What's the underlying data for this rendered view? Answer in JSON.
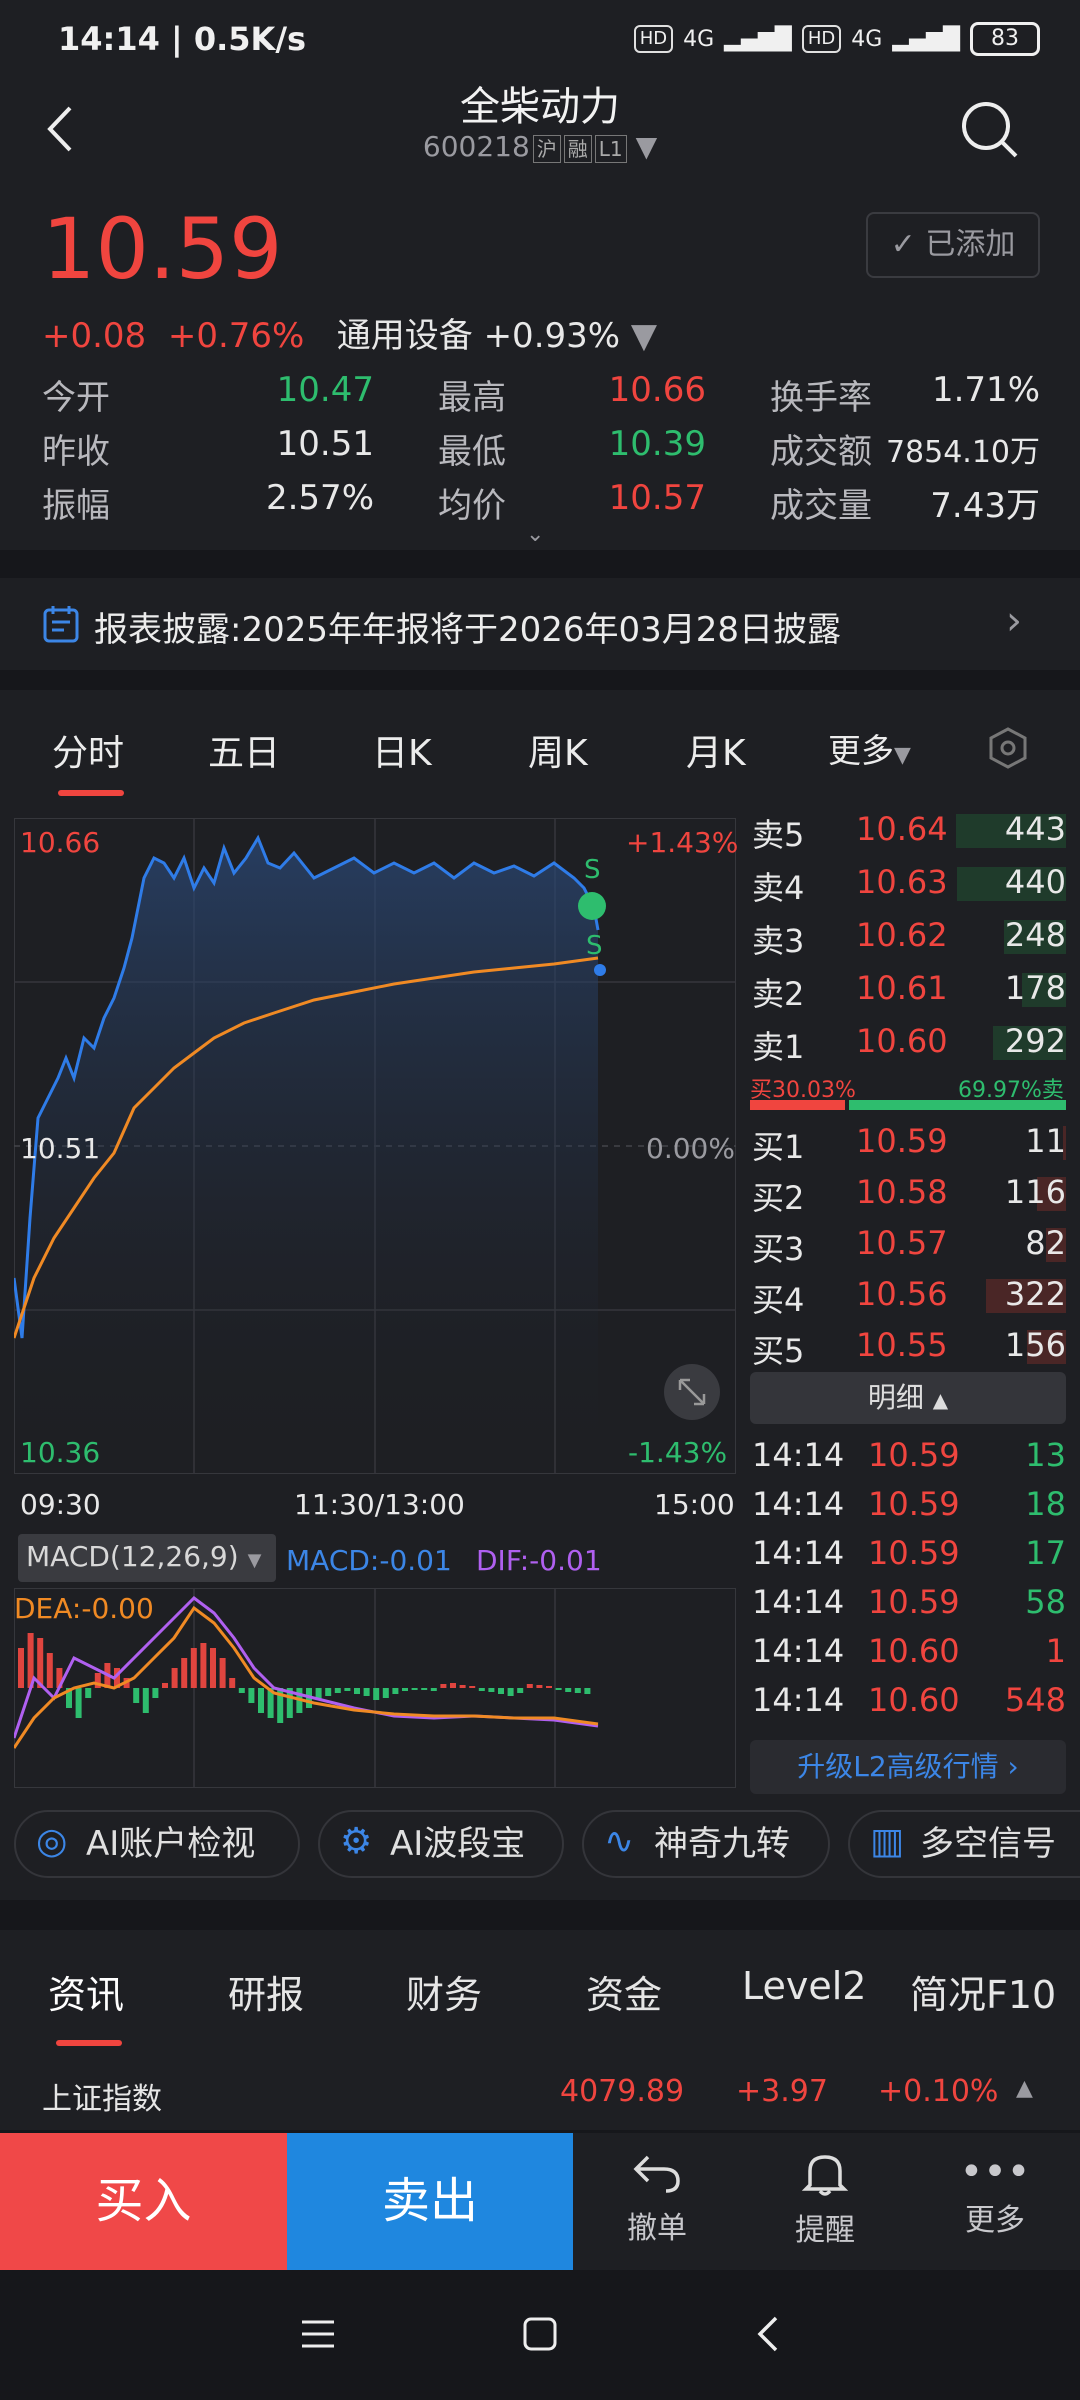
{
  "status": {
    "time": "14:14 | 0.5K/s",
    "battery": "83",
    "net1": "4G",
    "net2": "4G",
    "hd": "HD"
  },
  "header": {
    "name": "全柴动力",
    "code": "600218",
    "tags": [
      "沪",
      "融",
      "L1"
    ]
  },
  "quote": {
    "price": "10.59",
    "change": "+0.08",
    "pct": "+0.76%",
    "sector": "通用设备 +0.93%",
    "added": "已添加"
  },
  "stats": [
    {
      "k": "今开",
      "v": "10.47",
      "c": "green"
    },
    {
      "k": "最高",
      "v": "10.66",
      "c": "red"
    },
    {
      "k": "换手率",
      "v": "1.71%",
      "c": "white"
    },
    {
      "k": "昨收",
      "v": "10.51",
      "c": "white"
    },
    {
      "k": "最低",
      "v": "10.39",
      "c": "green"
    },
    {
      "k": "成交额",
      "v": "7854.10万",
      "c": "white"
    },
    {
      "k": "振幅",
      "v": "2.57%",
      "c": "white"
    },
    {
      "k": "均价",
      "v": "10.57",
      "c": "red"
    },
    {
      "k": "成交量",
      "v": "7.43万",
      "c": "white"
    }
  ],
  "notice": "报表披露:2025年年报将于2026年03月28日披露",
  "tabs": [
    "分时",
    "五日",
    "日K",
    "周K",
    "月K",
    "更多"
  ],
  "chart": {
    "top_price": "10.66",
    "mid_price": "10.51",
    "low_price": "10.36",
    "top_pct": "+1.43%",
    "mid_pct": "0.00%",
    "low_pct": "-1.43%",
    "t_start": "09:30",
    "t_mid": "11:30/13:00",
    "t_end": "15:00"
  },
  "macd": {
    "label": "MACD(12,26,9)",
    "macd": "MACD:-0.01",
    "dif": "DIF:-0.01",
    "dea": "DEA:-0.00"
  },
  "book": {
    "asks": [
      {
        "l": "卖5",
        "p": "10.64",
        "v": "443"
      },
      {
        "l": "卖4",
        "p": "10.63",
        "v": "440"
      },
      {
        "l": "卖3",
        "p": "10.62",
        "v": "248"
      },
      {
        "l": "卖2",
        "p": "10.61",
        "v": "178"
      },
      {
        "l": "卖1",
        "p": "10.60",
        "v": "292"
      }
    ],
    "ratio_buy": "买30.03%",
    "ratio_sell": "69.97%卖",
    "buy_fraction": 0.3003,
    "bids": [
      {
        "l": "买1",
        "p": "10.59",
        "v": "11"
      },
      {
        "l": "买2",
        "p": "10.58",
        "v": "116"
      },
      {
        "l": "买3",
        "p": "10.57",
        "v": "82"
      },
      {
        "l": "买4",
        "p": "10.56",
        "v": "322"
      },
      {
        "l": "买5",
        "p": "10.55",
        "v": "156"
      }
    ]
  },
  "detail": {
    "label": "明细",
    "rows": [
      {
        "t": "14:14",
        "p": "10.59",
        "v": "13"
      },
      {
        "t": "14:14",
        "p": "10.59",
        "v": "18"
      },
      {
        "t": "14:14",
        "p": "10.59",
        "v": "17"
      },
      {
        "t": "14:14",
        "p": "10.59",
        "v": "58"
      },
      {
        "t": "14:14",
        "p": "10.60",
        "v": "1"
      },
      {
        "t": "14:14",
        "p": "10.60",
        "v": "548"
      }
    ],
    "upgrade": "升级L2高级行情 ›"
  },
  "ai": [
    "AI账户检视",
    "AI波段宝",
    "神奇九转",
    "多空信号"
  ],
  "bottom_tabs": [
    "资讯",
    "研报",
    "财务",
    "资金",
    "Level2",
    "简况F10"
  ],
  "index": {
    "name": "上证指数",
    "price": "4079.89",
    "chg": "+3.97",
    "pct": "+0.10%"
  },
  "actions": {
    "buy": "买入",
    "sell": "卖出",
    "cancel": "撤单",
    "alert": "提醒",
    "more": "更多"
  }
}
